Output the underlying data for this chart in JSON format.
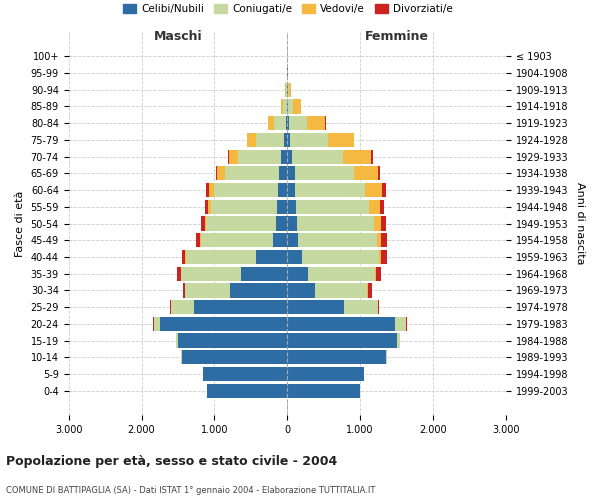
{
  "age_groups": [
    "0-4",
    "5-9",
    "10-14",
    "15-19",
    "20-24",
    "25-29",
    "30-34",
    "35-39",
    "40-44",
    "45-49",
    "50-54",
    "55-59",
    "60-64",
    "65-69",
    "70-74",
    "75-79",
    "80-84",
    "85-89",
    "90-94",
    "95-99",
    "100+"
  ],
  "birth_years": [
    "1999-2003",
    "1994-1998",
    "1989-1993",
    "1984-1988",
    "1979-1983",
    "1974-1978",
    "1969-1973",
    "1964-1968",
    "1959-1963",
    "1954-1958",
    "1949-1953",
    "1944-1948",
    "1939-1943",
    "1934-1938",
    "1929-1933",
    "1924-1928",
    "1919-1923",
    "1914-1918",
    "1909-1913",
    "1904-1908",
    "≤ 1903"
  ],
  "male": {
    "celibe": [
      1100,
      1150,
      1450,
      1500,
      1750,
      1280,
      780,
      640,
      430,
      200,
      160,
      145,
      130,
      120,
      90,
      40,
      18,
      8,
      4,
      2,
      2
    ],
    "coniugato": [
      1,
      2,
      5,
      20,
      80,
      310,
      620,
      820,
      960,
      980,
      950,
      900,
      880,
      740,
      580,
      390,
      160,
      45,
      12,
      4,
      2
    ],
    "vedovo": [
      0,
      0,
      0,
      0,
      1,
      2,
      3,
      5,
      10,
      15,
      25,
      40,
      60,
      100,
      130,
      120,
      80,
      30,
      10,
      3,
      1
    ],
    "divorziato": [
      0,
      0,
      0,
      2,
      5,
      15,
      30,
      42,
      42,
      52,
      55,
      50,
      40,
      20,
      15,
      8,
      5,
      2,
      1,
      0,
      0
    ]
  },
  "female": {
    "nubile": [
      1000,
      1050,
      1350,
      1500,
      1480,
      780,
      380,
      280,
      200,
      145,
      130,
      120,
      110,
      100,
      70,
      40,
      20,
      12,
      6,
      4,
      2
    ],
    "coniugata": [
      1,
      3,
      15,
      50,
      150,
      460,
      720,
      920,
      1060,
      1080,
      1060,
      1000,
      960,
      820,
      700,
      520,
      250,
      70,
      18,
      7,
      2
    ],
    "vedova": [
      0,
      0,
      0,
      1,
      3,
      5,
      10,
      15,
      30,
      60,
      90,
      150,
      230,
      320,
      380,
      350,
      250,
      100,
      25,
      5,
      2
    ],
    "divorziata": [
      0,
      0,
      1,
      3,
      8,
      20,
      52,
      72,
      82,
      78,
      72,
      62,
      52,
      32,
      22,
      12,
      8,
      3,
      1,
      0,
      0
    ]
  },
  "colors": {
    "celibe": "#2e6da4",
    "coniugato": "#c5d9a0",
    "vedovo": "#f5b942",
    "divorziato": "#cc2222"
  },
  "legend_labels": [
    "Celibi/Nubili",
    "Coniugati/e",
    "Vedovi/e",
    "Divorziati/e"
  ],
  "title": "Popolazione per età, sesso e stato civile - 2004",
  "subtitle": "COMUNE DI BATTIPAGLIA (SA) - Dati ISTAT 1° gennaio 2004 - Elaborazione TUTTITALIA.IT",
  "label_maschi": "Maschi",
  "label_femmine": "Femmine",
  "ylabel_left": "Fasce di età",
  "ylabel_right": "Anni di nascita",
  "xlim": 3000,
  "xtick_labels": [
    "3.000",
    "2.000",
    "1.000",
    "0",
    "1.000",
    "2.000",
    "3.000"
  ],
  "background_color": "#ffffff",
  "grid_color": "#cccccc",
  "center_line_color": "#aaaaaa"
}
